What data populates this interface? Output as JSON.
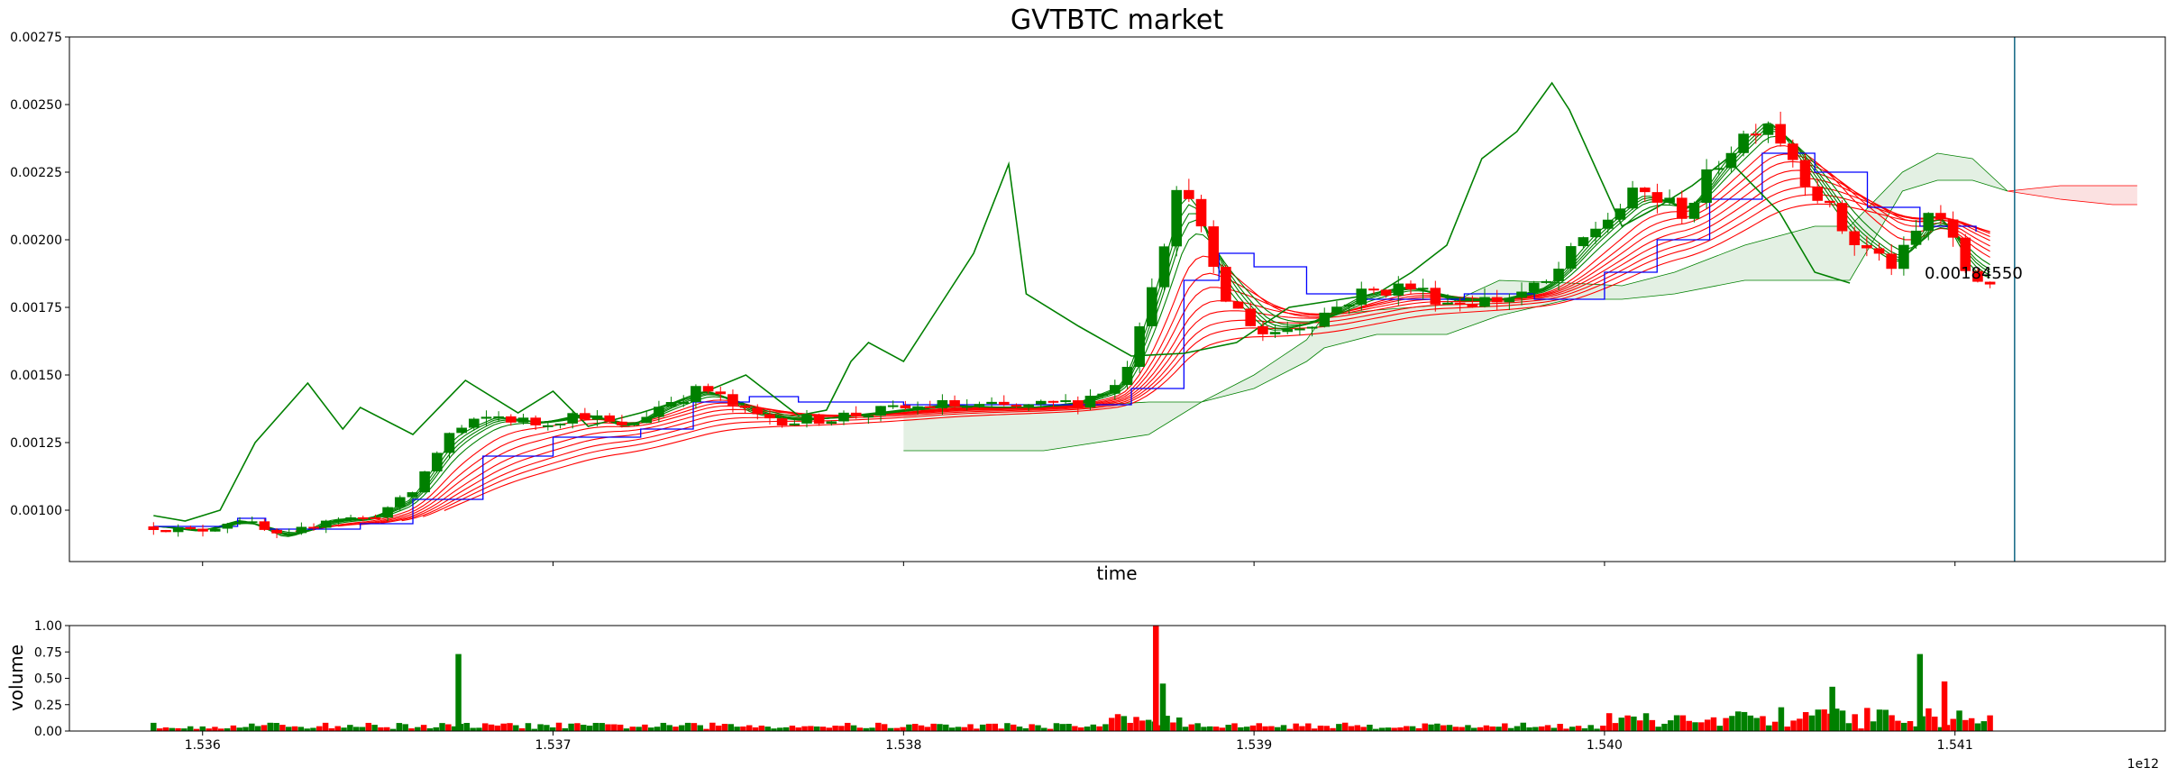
{
  "chart_data": [
    {
      "type": "candlestick",
      "title": "GVTBTC market",
      "xlabel": "time",
      "ylabel": "",
      "ylim": [
        0.00081,
        0.00275
      ],
      "xlim": [
        1535620000000,
        1541600000000
      ],
      "yticks": [
        "0.00100",
        "0.00125",
        "0.00150",
        "0.00175",
        "0.00200",
        "0.00225",
        "0.00250",
        "0.00275"
      ],
      "last_price_label": "0.00184550",
      "current_time_marker": 1541170000000,
      "colors": {
        "up": "#008000",
        "down": "#ff0000",
        "kijun": "#0000ff",
        "lagging": "#008000",
        "cloud_bull": "#e3f0e3",
        "cloud_bear": "#fbe1e1",
        "marker": "#1f6f8b"
      },
      "price_anchors": {
        "x": [
          1535860000000,
          1535980000000,
          1536100000000,
          1536230000000,
          1536350000000,
          1536470000000,
          1536590000000,
          1536700000000,
          1536830000000,
          1536950000000,
          1537080000000,
          1537200000000,
          1537320000000,
          1537430000000,
          1537560000000,
          1537700000000,
          1537830000000,
          1537970000000,
          1538100000000,
          1538230000000,
          1538360000000,
          1538490000000,
          1538620000000,
          1538720000000,
          1538800000000,
          1538900000000,
          1539030000000,
          1539160000000,
          1539300000000,
          1539430000000,
          1539560000000,
          1539700000000,
          1539830000000,
          1539960000000,
          1540100000000,
          1540230000000,
          1540340000000,
          1540460000000,
          1540580000000,
          1540700000000,
          1540830000000,
          1540940000000,
          1541040000000,
          1541100000000
        ],
        "y": [
          0.00094,
          0.00092,
          0.00097,
          0.00089,
          0.00097,
          0.00097,
          0.00105,
          0.00128,
          0.00135,
          0.00132,
          0.00136,
          0.0013,
          0.0014,
          0.00145,
          0.00135,
          0.00133,
          0.00135,
          0.00137,
          0.00139,
          0.00138,
          0.00138,
          0.0014,
          0.00147,
          0.0019,
          0.00225,
          0.0018,
          0.00165,
          0.0017,
          0.0018,
          0.00183,
          0.00177,
          0.00178,
          0.00183,
          0.00203,
          0.00218,
          0.0021,
          0.00232,
          0.00246,
          0.00222,
          0.002,
          0.0019,
          0.00213,
          0.00186,
          0.00185
        ]
      },
      "kijun_anchors": {
        "x": [
          1535860000000,
          1536100000000,
          1536180000000,
          1536450000000,
          1536600000000,
          1536800000000,
          1537000000000,
          1537250000000,
          1537400000000,
          1537560000000,
          1537700000000,
          1538000000000,
          1538400000000,
          1538650000000,
          1538800000000,
          1538900000000,
          1539000000000,
          1539150000000,
          1539300000000,
          1539450000000,
          1539600000000,
          1539800000000,
          1540000000000,
          1540150000000,
          1540300000000,
          1540450000000,
          1540600000000,
          1540750000000,
          1540900000000,
          1541060000000
        ],
        "y": [
          0.00094,
          0.00097,
          0.00093,
          0.00095,
          0.00104,
          0.0012,
          0.00127,
          0.0013,
          0.0014,
          0.00142,
          0.0014,
          0.00139,
          0.00139,
          0.00145,
          0.00185,
          0.00195,
          0.0019,
          0.0018,
          0.00178,
          0.00178,
          0.0018,
          0.00178,
          0.00188,
          0.002,
          0.00215,
          0.00232,
          0.00225,
          0.00212,
          0.00205,
          0.00203
        ]
      },
      "lagging_anchors": {
        "x": [
          1535860000000,
          1535950000000,
          1536050000000,
          1536150000000,
          1536300000000,
          1536400000000,
          1536450000000,
          1536600000000,
          1536750000000,
          1536900000000,
          1537000000000,
          1537100000000,
          1537250000000,
          1537400000000,
          1537550000000,
          1537700000000,
          1537780000000,
          1537850000000,
          1537900000000,
          1538000000000,
          1538100000000,
          1538200000000,
          1538300000000,
          1538350000000,
          1538500000000,
          1538650000000,
          1538800000000,
          1538950000000,
          1539100000000,
          1539250000000,
          1539350000000,
          1539450000000,
          1539550000000,
          1539650000000,
          1539750000000,
          1539850000000,
          1539900000000,
          1540050000000,
          1540150000000,
          1540250000000,
          1540350000000,
          1540500000000,
          1540600000000,
          1540700000000
        ],
        "y": [
          0.00098,
          0.00096,
          0.001,
          0.00125,
          0.00147,
          0.0013,
          0.00138,
          0.00128,
          0.00148,
          0.00136,
          0.00144,
          0.00131,
          0.00136,
          0.00142,
          0.0015,
          0.00135,
          0.00137,
          0.00155,
          0.00162,
          0.00155,
          0.00175,
          0.00195,
          0.00228,
          0.0018,
          0.00168,
          0.00157,
          0.00158,
          0.00162,
          0.00175,
          0.00178,
          0.0018,
          0.00188,
          0.00198,
          0.0023,
          0.0024,
          0.00258,
          0.00248,
          0.00205,
          0.00212,
          0.0022,
          0.0023,
          0.0021,
          0.00188,
          0.00184
        ]
      },
      "cloud_bull_upper": {
        "x": [
          1538000000000,
          1538400000000,
          1538700000000,
          1538850000000,
          1539000000000,
          1539150000000,
          1539200000000,
          1539350000000,
          1539550000000,
          1539700000000,
          1539900000000,
          1540050000000,
          1540200000000,
          1540400000000,
          1540600000000,
          1540700000000,
          1540850000000,
          1540950000000,
          1541050000000,
          1541150000000
        ],
        "y": [
          0.00137,
          0.00138,
          0.0014,
          0.0014,
          0.0015,
          0.00163,
          0.00172,
          0.00174,
          0.00176,
          0.00185,
          0.00184,
          0.00183,
          0.00188,
          0.00198,
          0.00205,
          0.00205,
          0.00225,
          0.00232,
          0.0023,
          0.00218
        ]
      },
      "cloud_bull_lower": {
        "x": [
          1538000000000,
          1538400000000,
          1538700000000,
          1538850000000,
          1539000000000,
          1539150000000,
          1539200000000,
          1539350000000,
          1539550000000,
          1539700000000,
          1539900000000,
          1540050000000,
          1540200000000,
          1540400000000,
          1540600000000,
          1540700000000,
          1540850000000,
          1540950000000,
          1541050000000,
          1541150000000
        ],
        "y": [
          0.00122,
          0.00122,
          0.00128,
          0.0014,
          0.00145,
          0.00155,
          0.0016,
          0.00165,
          0.00165,
          0.00172,
          0.00178,
          0.00178,
          0.0018,
          0.00185,
          0.00185,
          0.00185,
          0.00218,
          0.00222,
          0.00222,
          0.00218
        ]
      },
      "cloud_bear_upper": {
        "x": [
          1541150000000,
          1541300000000,
          1541450000000,
          1541520000000
        ],
        "y": [
          0.00218,
          0.0022,
          0.0022,
          0.0022
        ]
      },
      "cloud_bear_lower": {
        "x": [
          1541150000000,
          1541300000000,
          1541450000000,
          1541520000000
        ],
        "y": [
          0.00218,
          0.00215,
          0.00213,
          0.00213
        ]
      },
      "ema_fan": {
        "green_count": 5,
        "red_count": 8
      }
    },
    {
      "type": "bar",
      "title": "",
      "xlabel": "",
      "ylabel": "volume",
      "ylim": [
        0,
        1.0
      ],
      "yticks": [
        "0.00",
        "0.25",
        "0.50",
        "0.75",
        "1.00"
      ],
      "xticks": [
        "1.536",
        "1.537",
        "1.538",
        "1.539",
        "1.540",
        "1.541"
      ],
      "x_offset_label": "1e12",
      "spikes": [
        {
          "x": 1536730000000,
          "v": 0.73,
          "color": "up"
        },
        {
          "x": 1538720000000,
          "v": 1.0,
          "color": "down"
        },
        {
          "x": 1538740000000,
          "v": 0.45,
          "color": "up"
        },
        {
          "x": 1540900000000,
          "v": 0.73,
          "color": "up"
        },
        {
          "x": 1540970000000,
          "v": 0.47,
          "color": "down"
        },
        {
          "x": 1540650000000,
          "v": 0.42,
          "color": "up"
        }
      ]
    }
  ]
}
